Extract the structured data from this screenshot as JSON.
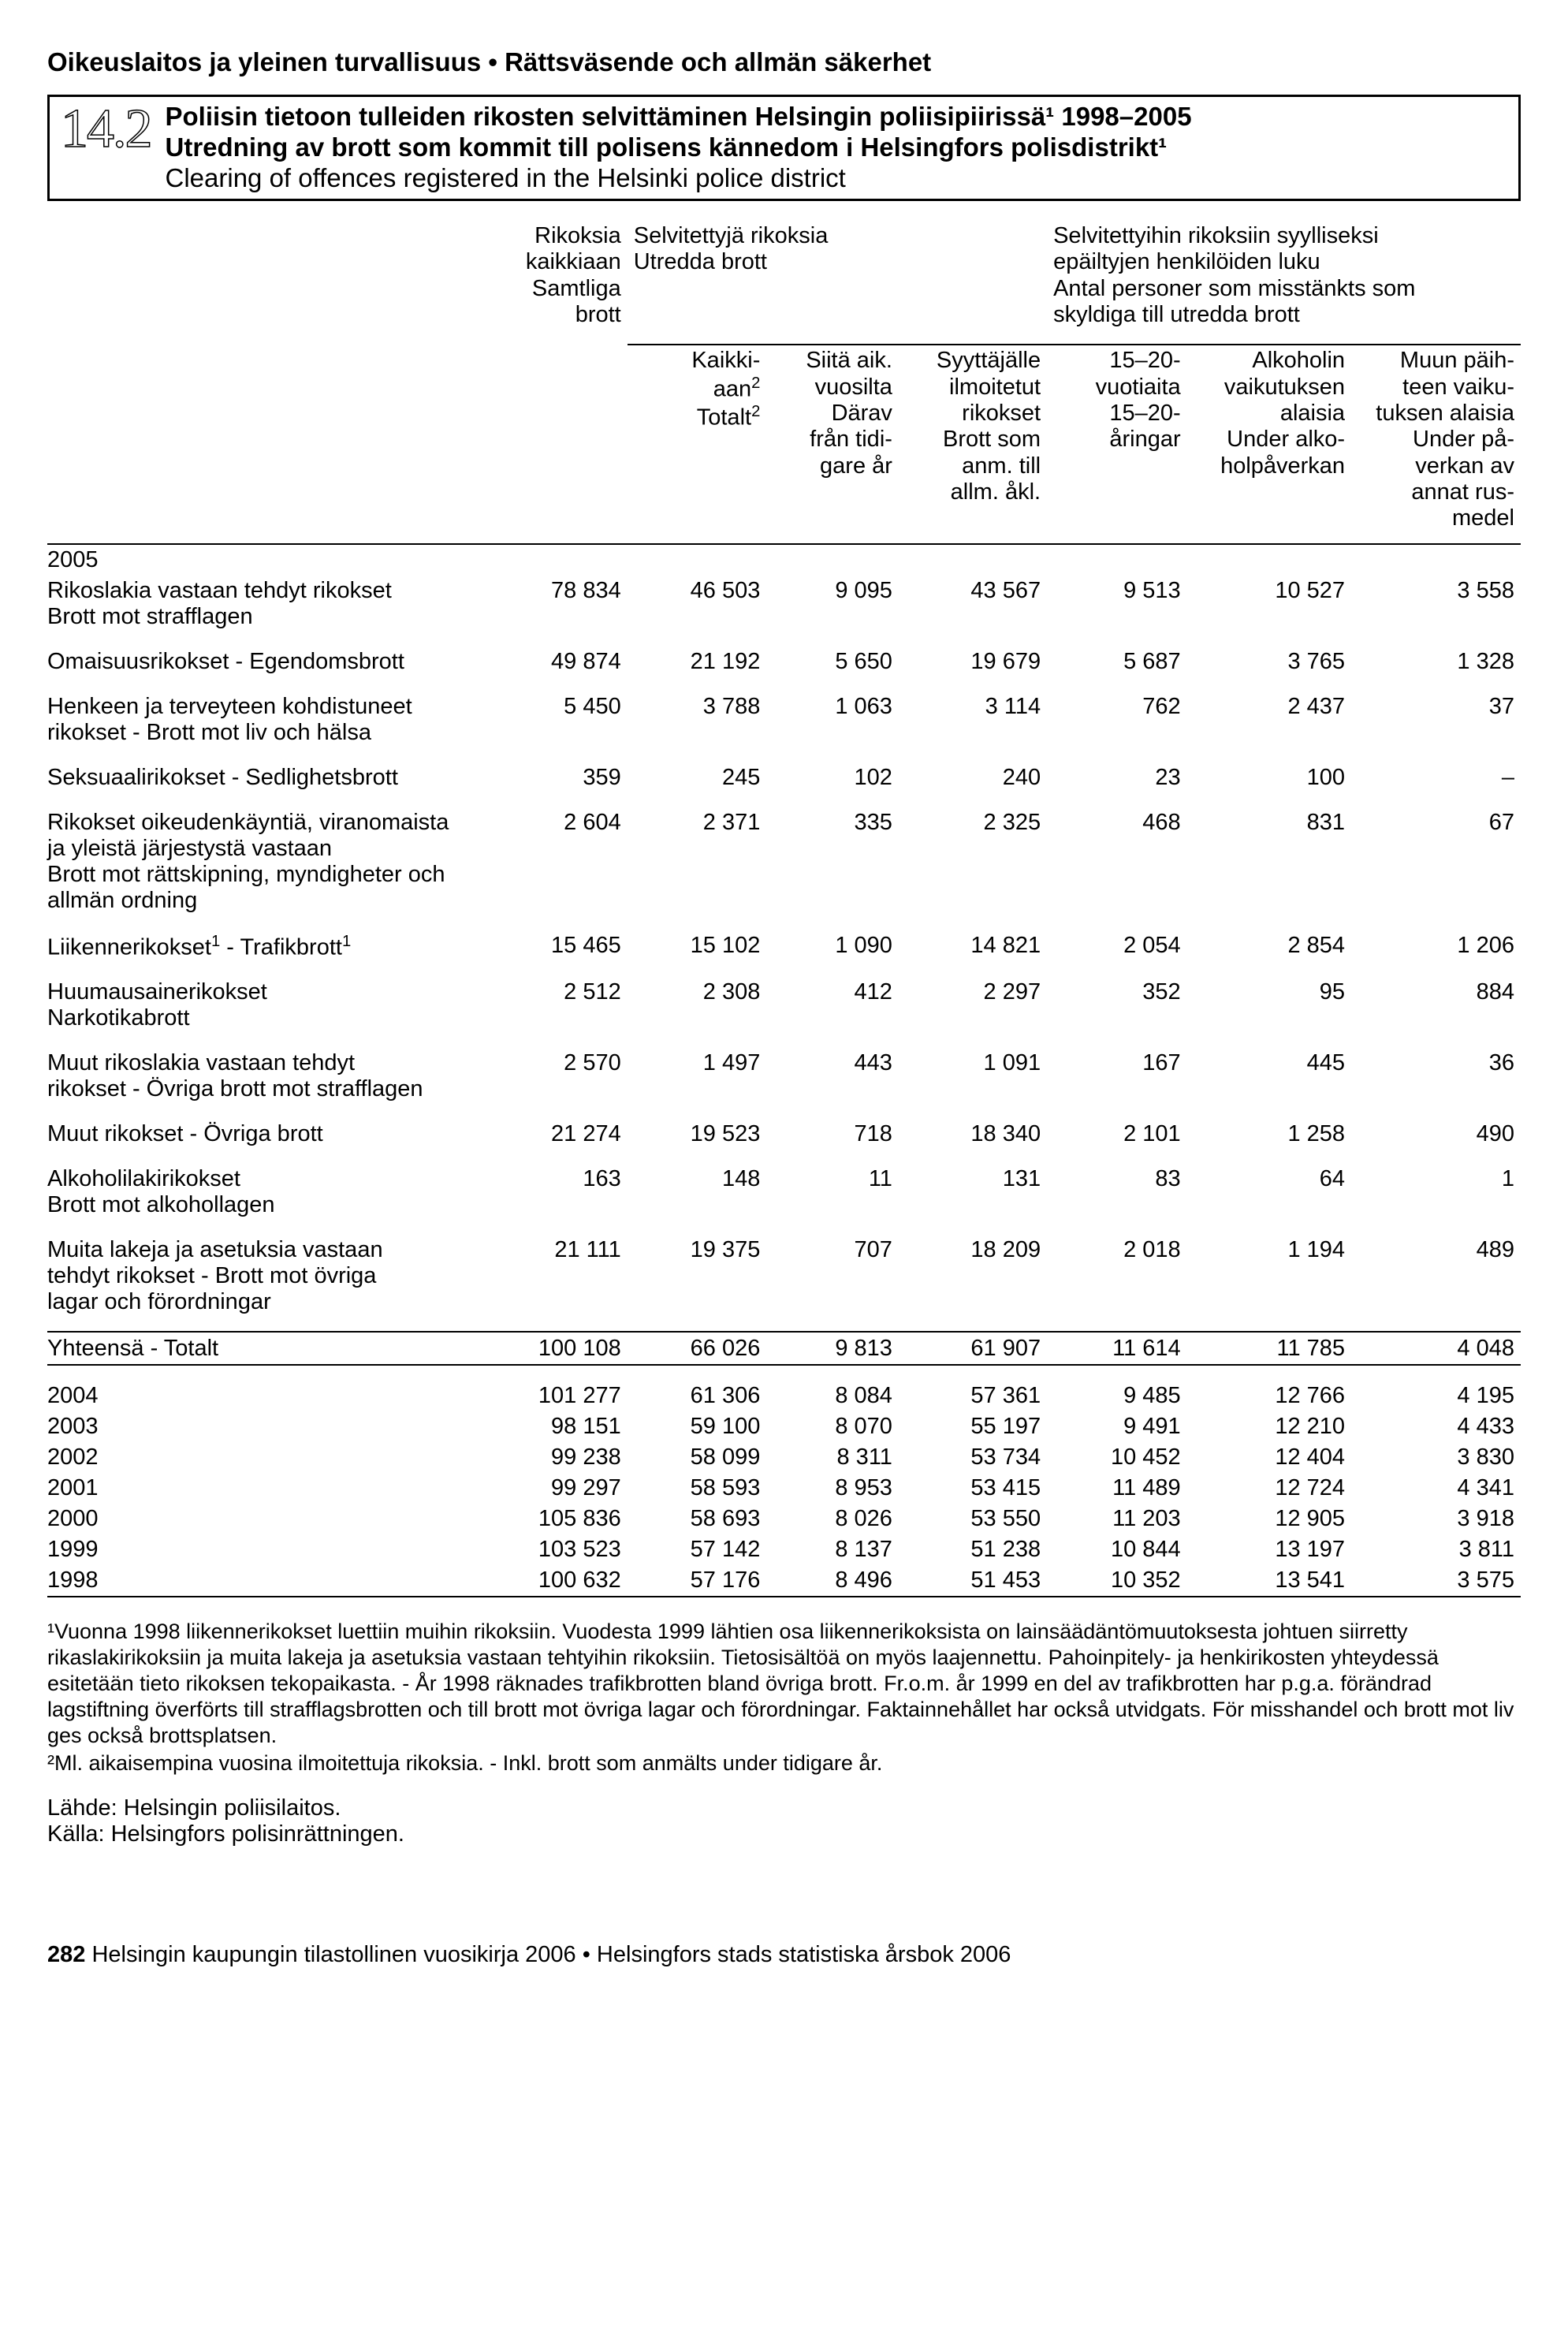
{
  "header": "Oikeuslaitos ja yleinen turvallisuus • Rättsväsende och allmän säkerhet",
  "table_number": "14.2",
  "title_fi": "Poliisin tietoon tulleiden rikosten selvittäminen Helsingin poliisipiirissä¹ 1998–2005",
  "title_sv": "Utredning av brott som kommit till polisens kännedom i Helsingfors polisdistrikt¹",
  "title_en": "Clearing of offences registered in the Helsinki police district",
  "col_group_1": "Rikoksia kaikkiaan Samtliga brott",
  "col_group_2": "Selvitettyjä rikoksia Utredda brott",
  "col_group_3": "Selvitettyihin rikoksiin syylliseksi epäiltyjen henkilöiden luku Antal personer som misstänkts som skyldiga till utredda brott",
  "cols": {
    "c2": "Kaikki-aan² Totalt²",
    "c3": "Siitä aik. vuosilta Därav från tidi-gare år",
    "c4": "Syyttäjälle ilmoitetut rikokset Brott som anm. till allm. åkl.",
    "c5": "15–20-vuotiaita 15–20-åringar",
    "c6": "Alkoholin vaikutuksen alaisia Under alko-holpåverkan",
    "c7": "Muun päih-teen vaiku-tuksen alaisia Under på-verkan av annat rus-medel"
  },
  "year2005": "2005",
  "rows": {
    "r1": {
      "label": "Rikoslakia vastaan tehdyt rikokset Brott mot strafflagen",
      "v": [
        "78 834",
        "46 503",
        "9 095",
        "43 567",
        "9 513",
        "10 527",
        "3 558"
      ],
      "bold": true
    },
    "r2": {
      "label": "Omaisuusrikokset - Egendomsbrott",
      "v": [
        "49 874",
        "21 192",
        "5 650",
        "19 679",
        "5 687",
        "3 765",
        "1 328"
      ]
    },
    "r3": {
      "label": "Henkeen ja terveyteen kohdistuneet rikokset - Brott mot liv och hälsa",
      "v": [
        "5 450",
        "3 788",
        "1 063",
        "3 114",
        "762",
        "2 437",
        "37"
      ]
    },
    "r4": {
      "label": "Seksuaalirikokset - Sedlighetsbrott",
      "v": [
        "359",
        "245",
        "102",
        "240",
        "23",
        "100",
        "–"
      ]
    },
    "r5": {
      "label": "Rikokset oikeudenkäyntiä, viranomaista ja yleistä järjestystä vastaan Brott mot rättskipning, myndigheter och allmän ordning",
      "v": [
        "2 604",
        "2 371",
        "335",
        "2 325",
        "468",
        "831",
        "67"
      ]
    },
    "r6": {
      "label": "Liikennerikokset¹ - Trafikbrott¹",
      "v": [
        "15 465",
        "15 102",
        "1 090",
        "14 821",
        "2 054",
        "2 854",
        "1 206"
      ]
    },
    "r7": {
      "label": "Huumausainerikokset Narkotikabrott",
      "v": [
        "2 512",
        "2 308",
        "412",
        "2 297",
        "352",
        "95",
        "884"
      ]
    },
    "r8": {
      "label": "Muut rikoslakia vastaan tehdyt rikokset - Övriga brott mot strafflagen",
      "v": [
        "2 570",
        "1 497",
        "443",
        "1 091",
        "167",
        "445",
        "36"
      ]
    },
    "r9": {
      "label": "Muut rikokset - Övriga brott",
      "v": [
        "21 274",
        "19 523",
        "718",
        "18 340",
        "2 101",
        "1 258",
        "490"
      ],
      "bold": true
    },
    "r10": {
      "label": "Alkoholilakirikokset Brott mot alkohollagen",
      "v": [
        "163",
        "148",
        "11",
        "131",
        "83",
        "64",
        "1"
      ]
    },
    "r11": {
      "label": "Muita lakeja ja asetuksia vastaan tehdyt rikokset - Brott mot övriga lagar och förordningar",
      "v": [
        "21 111",
        "19 375",
        "707",
        "18 209",
        "2 018",
        "1 194",
        "489"
      ]
    },
    "r12": {
      "label": "Yhteensä - Totalt",
      "v": [
        "100 108",
        "66 026",
        "9 813",
        "61 907",
        "11 614",
        "11 785",
        "4 048"
      ],
      "bold": true
    }
  },
  "yearly": {
    "y2004": {
      "label": "2004",
      "v": [
        "101 277",
        "61 306",
        "8 084",
        "57 361",
        "9 485",
        "12 766",
        "4 195"
      ]
    },
    "y2003": {
      "label": "2003",
      "v": [
        "98 151",
        "59 100",
        "8 070",
        "55 197",
        "9 491",
        "12 210",
        "4 433"
      ]
    },
    "y2002": {
      "label": "2002",
      "v": [
        "99 238",
        "58 099",
        "8 311",
        "53 734",
        "10 452",
        "12 404",
        "3 830"
      ]
    },
    "y2001": {
      "label": "2001",
      "v": [
        "99 297",
        "58 593",
        "8 953",
        "53 415",
        "11 489",
        "12 724",
        "4 341"
      ]
    },
    "y2000": {
      "label": "2000",
      "v": [
        "105 836",
        "58 693",
        "8 026",
        "53 550",
        "11 203",
        "12 905",
        "3 918"
      ]
    },
    "y1999": {
      "label": "1999",
      "v": [
        "103 523",
        "57 142",
        "8 137",
        "51 238",
        "10 844",
        "13 197",
        "3 811"
      ]
    },
    "y1998": {
      "label": "1998",
      "v": [
        "100 632",
        "57 176",
        "8 496",
        "51 453",
        "10 352",
        "13 541",
        "3 575"
      ]
    }
  },
  "footnote1": "¹Vuonna 1998 liikennerikokset luettiin muihin rikoksiin. Vuodesta 1999 lähtien osa liikennerikoksista on lainsäädäntömuutoksesta johtuen siirretty rikaslakirikoksiin ja muita lakeja ja asetuksia vastaan tehtyihin rikoksiin. Tietosisältöä on myös laajennettu. Pahoinpitely- ja henkirikosten yhteydessä esitetään tieto rikoksen tekopaikasta. - År 1998 räknades trafikbrotten bland övriga brott. Fr.o.m. år 1999 en del av trafikbrotten har p.g.a. förändrad lagstiftning överförts till strafflagsbrotten och till brott mot övriga lagar och förordningar. Faktainnehållet har också utvidgats. För misshandel och brott mot liv ges också brottsplatsen.",
  "footnote2": "²Ml. aikaisempina vuosina ilmoitettuja rikoksia. - Inkl. brott som anmälts under tidigare år.",
  "source_fi": "Lähde: Helsingin poliisilaitos.",
  "source_sv": "Källa: Helsingfors polisinrättningen.",
  "page_number": "282",
  "page_footer_text": " Helsingin kaupungin tilastollinen vuosikirja 2006 • Helsingfors stads statistiska årsbok 2006"
}
